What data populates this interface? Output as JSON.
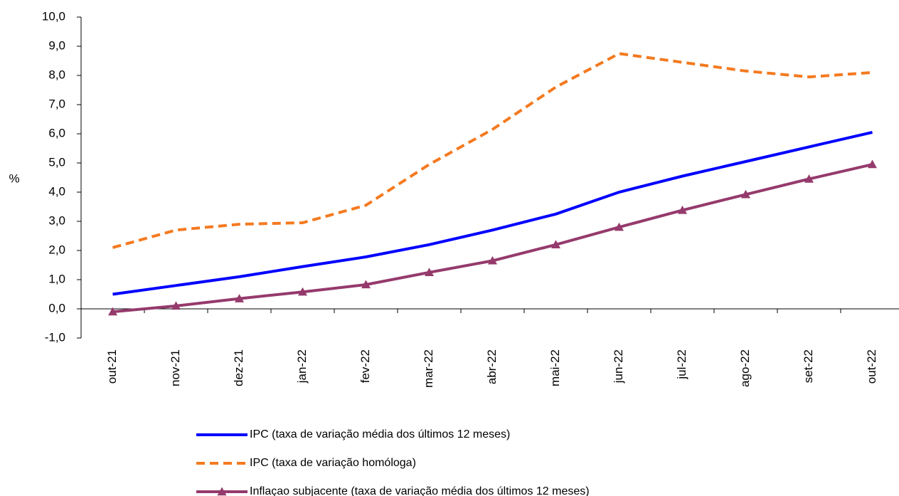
{
  "chart_data": {
    "type": "line",
    "y_label": "%",
    "categories": [
      "out-21",
      "nov-21",
      "dez-21",
      "jan-22",
      "fev-22",
      "mar-22",
      "abr-22",
      "mai-22",
      "jun-22",
      "jul-22",
      "ago-22",
      "set-22",
      "out-22"
    ],
    "series": [
      {
        "name": "IPC (taxa de variação média dos últimos 12 meses)",
        "color": "#0000ff",
        "dash": "solid",
        "marker": "none",
        "values": [
          0.5,
          0.8,
          1.1,
          1.45,
          1.78,
          2.2,
          2.7,
          3.25,
          4.0,
          4.55,
          5.05,
          5.55,
          6.05
        ]
      },
      {
        "name": "IPC (taxa de variação homóloga)",
        "color": "#f47a20",
        "dash": "dashed",
        "marker": "none",
        "values": [
          2.1,
          2.7,
          2.9,
          2.95,
          3.55,
          4.95,
          6.15,
          7.6,
          8.75,
          8.45,
          8.15,
          7.95,
          8.1
        ]
      },
      {
        "name": "Inflaçao subjacente (taxa de variação média dos últimos 12 meses)",
        "color": "#953a6c",
        "dash": "solid",
        "marker": "triangle",
        "values": [
          -0.1,
          0.1,
          0.35,
          0.58,
          0.83,
          1.25,
          1.65,
          2.2,
          2.8,
          3.38,
          3.92,
          4.45,
          4.95
        ]
      }
    ],
    "ylim": [
      -1,
      10
    ],
    "yticks": [
      {
        "value": -1,
        "label": "-1,0"
      },
      {
        "value": 0,
        "label": "0,0"
      },
      {
        "value": 1,
        "label": "1,0"
      },
      {
        "value": 2,
        "label": "2,0"
      },
      {
        "value": 3,
        "label": "3,0"
      },
      {
        "value": 4,
        "label": "4,0"
      },
      {
        "value": 5,
        "label": "5,0"
      },
      {
        "value": 6,
        "label": "6,0"
      },
      {
        "value": 7,
        "label": "7,0"
      },
      {
        "value": 8,
        "label": "8,0"
      },
      {
        "value": 9,
        "label": "9,0"
      },
      {
        "value": 10,
        "label": "10,0"
      }
    ],
    "grid": false
  }
}
